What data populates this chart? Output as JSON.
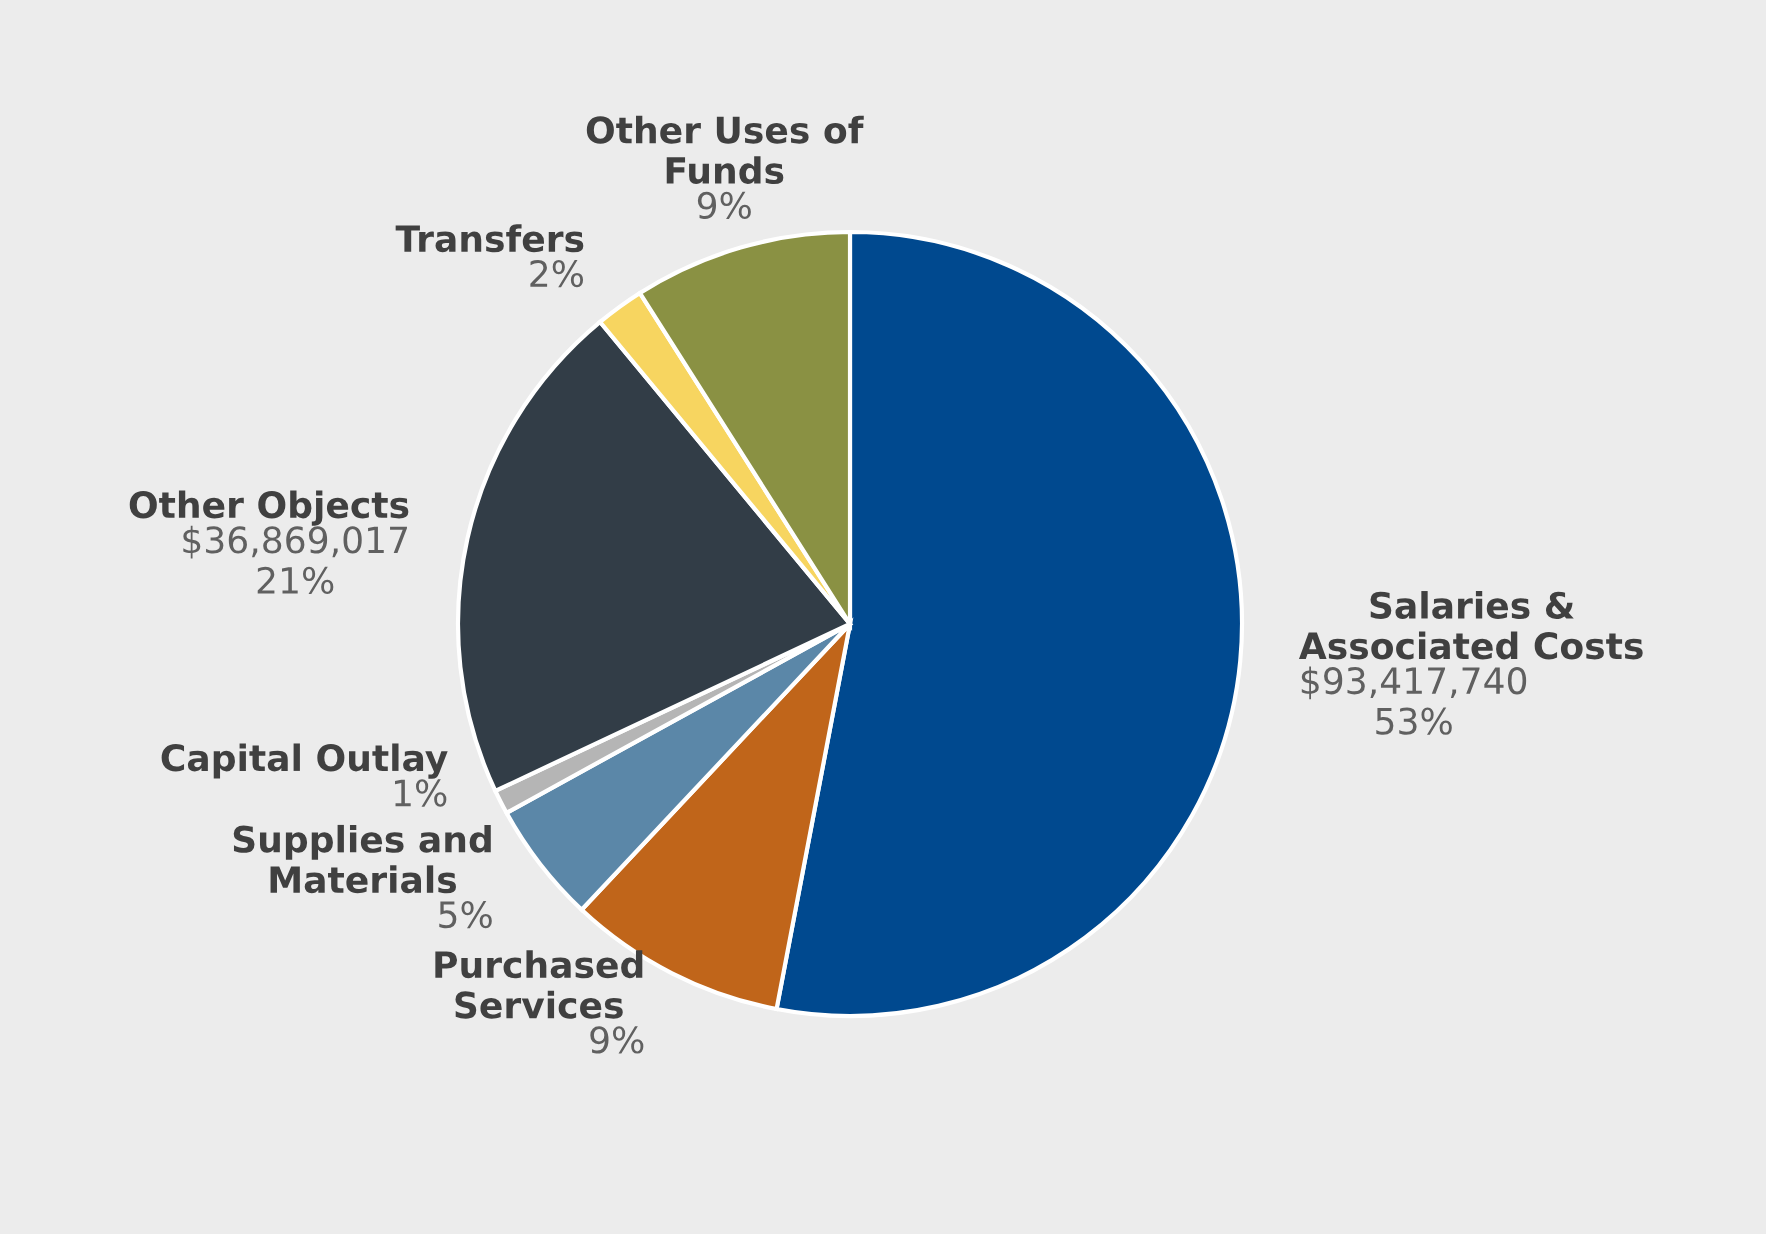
{
  "chart_data": {
    "type": "pie",
    "categories": [
      "Salaries &\nAssociated Costs",
      "Purchased\nServices",
      "Supplies and\nMaterials",
      "Capital Outlay",
      "Other Objects",
      "Transfers",
      "Other Uses of\nFunds"
    ],
    "values": [
      53,
      9,
      5,
      1,
      21,
      2,
      9
    ],
    "value_labels": [
      "$93,417,740\n53%",
      "9%",
      "5%",
      "1%",
      "$36,869,017\n21%",
      "2%",
      "9%"
    ],
    "colors": [
      "#00498f",
      "#c0651a",
      "#5b87a8",
      "#b5b5b5",
      "#323d47",
      "#f7d560",
      "#8a9143"
    ]
  }
}
